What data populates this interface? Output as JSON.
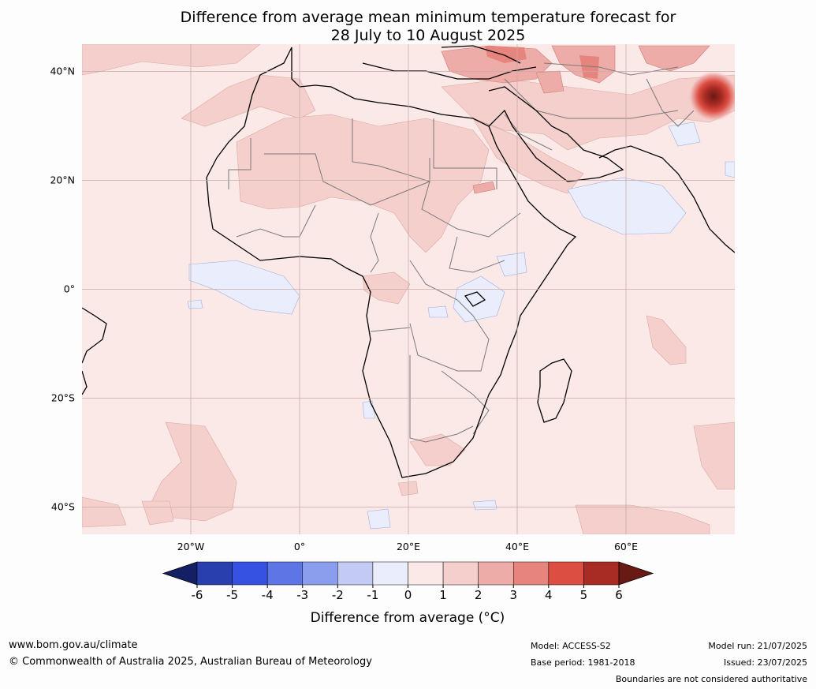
{
  "title": {
    "line1": "Difference from average mean minimum temperature forecast for",
    "line2": "28 July to 10 August 2025"
  },
  "map": {
    "lat_labels": [
      "40°N",
      "20°N",
      "0°",
      "20°S",
      "40°S"
    ],
    "lon_labels": [
      "20°W",
      "0°",
      "20°E",
      "40°E",
      "60°E"
    ],
    "lat_values": [
      40,
      20,
      0,
      -20,
      -40
    ],
    "lon_values": [
      -20,
      0,
      20,
      40,
      60
    ],
    "extent": {
      "lon_min": -40,
      "lon_max": 80,
      "lat_min": -45,
      "lat_max": 45
    }
  },
  "colorbar": {
    "ticks": [
      "-6",
      "-5",
      "-4",
      "-3",
      "-2",
      "-1",
      "0",
      "1",
      "2",
      "3",
      "4",
      "5",
      "6"
    ],
    "colors": [
      "#142063",
      "#2a3fae",
      "#3552e2",
      "#5d75e5",
      "#8b9ded",
      "#c3cbf4",
      "#eaedfb",
      "#fbe9e8",
      "#f5cfcc",
      "#eeaca8",
      "#e6857d",
      "#dc4d42",
      "#a92c24",
      "#6a1a14"
    ],
    "label": "Difference from average (°C)"
  },
  "footer": {
    "website": "www.bom.gov.au/climate",
    "copyright": "© Commonwealth of Australia 2025, Australian Bureau of Meteorology",
    "model": "Model: ACCESS-S2",
    "base_period": "Base period: 1981-2018",
    "model_run": "Model run: 21/07/2025",
    "issued": "Issued: 23/07/2025",
    "disclaimer": "Boundaries are not considered authoritative"
  }
}
